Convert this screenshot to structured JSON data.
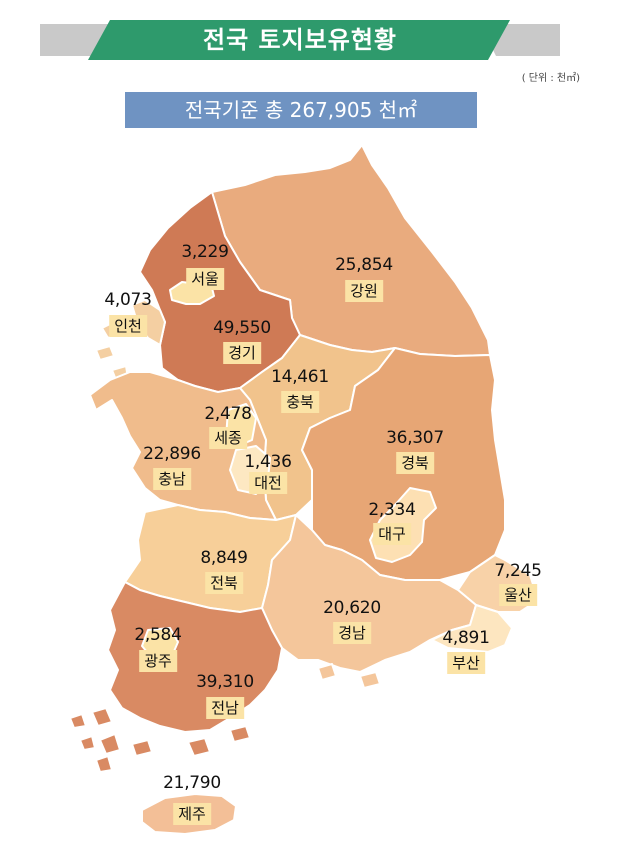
{
  "header": {
    "title": "전국 토지보유현황",
    "unit": "( 단위 : 천㎡)",
    "total": "전국기준 총 267,905 천㎡"
  },
  "colors": {
    "banner_green": "#2e9a6c",
    "banner_gray": "#c9c9c9",
    "total_box": "#6f93c2",
    "label_bg": "#fbe3a6"
  },
  "regions": [
    {
      "id": "seoul",
      "name": "서울",
      "value": "3,229"
    },
    {
      "id": "incheon",
      "name": "인천",
      "value": "4,073"
    },
    {
      "id": "gyeonggi",
      "name": "경기",
      "value": "49,550"
    },
    {
      "id": "gangwon",
      "name": "강원",
      "value": "25,854"
    },
    {
      "id": "chungbuk",
      "name": "충북",
      "value": "14,461"
    },
    {
      "id": "sejong",
      "name": "세종",
      "value": "2,478"
    },
    {
      "id": "chungnam",
      "name": "충남",
      "value": "22,896"
    },
    {
      "id": "daejeon",
      "name": "대전",
      "value": "1,436"
    },
    {
      "id": "gyeongbuk",
      "name": "경북",
      "value": "36,307"
    },
    {
      "id": "daegu",
      "name": "대구",
      "value": "2,334"
    },
    {
      "id": "jeonbuk",
      "name": "전북",
      "value": "8,849"
    },
    {
      "id": "ulsan",
      "name": "울산",
      "value": "7,245"
    },
    {
      "id": "gyeongnam",
      "name": "경남",
      "value": "20,620"
    },
    {
      "id": "busan",
      "name": "부산",
      "value": "4,891"
    },
    {
      "id": "gwangju",
      "name": "광주",
      "value": "2,584"
    },
    {
      "id": "jeonnam",
      "name": "전남",
      "value": "39,310"
    },
    {
      "id": "jeju",
      "name": "제주",
      "value": "21,790"
    }
  ]
}
